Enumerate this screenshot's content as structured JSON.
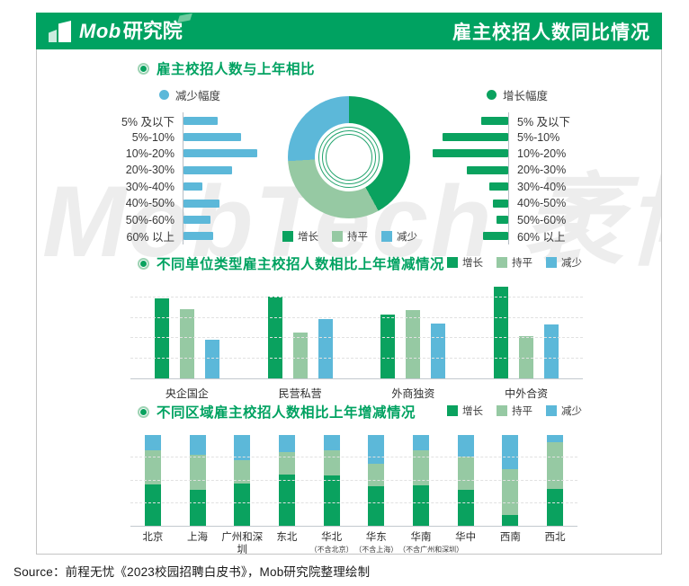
{
  "header": {
    "brand_en": "Mob",
    "brand_cn": "研究院",
    "title": "雇主校招人数同比情况"
  },
  "watermark": "MobTech 袤博",
  "footer": {
    "source": "Source：前程无忧《2023校园招聘白皮书》，Mob研究院整理绘制"
  },
  "colors": {
    "brand_green": "#00a261",
    "increase": "#0aa25f",
    "flat": "#96c9a3",
    "decrease": "#5cb8d9",
    "watermark": "#ededed"
  },
  "legend": {
    "increase": "增长",
    "flat": "持平",
    "decrease": "减少"
  },
  "sections": {
    "compare": {
      "title": "雇主校招人数与上年相比",
      "left_legend": "减少幅度",
      "right_legend": "增长幅度"
    },
    "unit": {
      "title": "不同单位类型雇主校招人数相比上年增减情况"
    },
    "region": {
      "title": "不同区域雇主校招人数相比上年增减情况"
    }
  },
  "chart_data": [
    {
      "type": "pie",
      "subtype": "donut",
      "title": "雇主校招人数与上年相比",
      "labels": [
        "增长",
        "持平",
        "减少"
      ],
      "values_percent": [
        42,
        32,
        26
      ],
      "colors": [
        "#0aa25f",
        "#96c9a3",
        "#5cb8d9"
      ],
      "start_angle_deg": 0,
      "legend_position": "bottom",
      "note": "no numeric labels printed; shares estimated from segment angles"
    },
    {
      "type": "bar",
      "orientation": "horizontal",
      "title": "减少幅度",
      "color": "#5cb8d9",
      "categories": [
        "5% 及以下",
        "5%-10%",
        "10%-20%",
        "20%-30%",
        "30%-40%",
        "40%-50%",
        "50%-60%",
        "60% 以上"
      ],
      "values_relative": [
        38,
        64,
        82,
        54,
        21,
        40,
        30,
        33
      ],
      "note": "no axis scale shown; values are relative bar lengths"
    },
    {
      "type": "bar",
      "orientation": "horizontal",
      "title": "增长幅度",
      "color": "#0aa25f",
      "categories": [
        "5% 及以下",
        "5%-10%",
        "10%-20%",
        "20%-30%",
        "30%-40%",
        "40%-50%",
        "50%-60%",
        "60% 以上"
      ],
      "values_relative": [
        30,
        73,
        84,
        46,
        21,
        17,
        13,
        28
      ],
      "note": "no axis scale shown; values are relative bar lengths"
    },
    {
      "type": "bar",
      "subtype": "grouped",
      "title": "不同单位类型雇主校招人数相比上年增减情况",
      "categories": [
        "央企国企",
        "民营私营",
        "外商独资",
        "中外合资"
      ],
      "series": [
        {
          "name": "增长",
          "color": "#0aa25f",
          "values_relative": [
            89,
            91,
            71,
            102
          ]
        },
        {
          "name": "持平",
          "color": "#96c9a3",
          "values_relative": [
            77,
            51,
            76,
            47
          ]
        },
        {
          "name": "减少",
          "color": "#5cb8d9",
          "values_relative": [
            43,
            66,
            61,
            60
          ]
        }
      ],
      "grid": "dashed horizontal",
      "legend_position": "top-right",
      "note": "no y-axis labels; values are relative bar heights"
    },
    {
      "type": "bar",
      "subtype": "stacked_percent",
      "title": "不同区域雇主校招人数相比上年增减情况",
      "categories": [
        {
          "label": "北京",
          "note": ""
        },
        {
          "label": "上海",
          "note": ""
        },
        {
          "label": "广州和深圳",
          "note": ""
        },
        {
          "label": "东北",
          "note": ""
        },
        {
          "label": "华北",
          "note": "（不含北京）"
        },
        {
          "label": "华东",
          "note": "（不含上海）"
        },
        {
          "label": "华南",
          "note": "（不含广州和深圳）"
        },
        {
          "label": "华中",
          "note": ""
        },
        {
          "label": "西南",
          "note": ""
        },
        {
          "label": "西北",
          "note": ""
        }
      ],
      "series": [
        {
          "name": "增长",
          "color": "#0aa25f",
          "values_percent": [
            46,
            40,
            47,
            56,
            55,
            44,
            45,
            40,
            12,
            41
          ]
        },
        {
          "name": "持平",
          "color": "#96c9a3",
          "values_percent": [
            37,
            38,
            25,
            25,
            28,
            24,
            38,
            36,
            50,
            51
          ]
        },
        {
          "name": "减少",
          "color": "#5cb8d9",
          "values_percent": [
            17,
            22,
            28,
            19,
            17,
            32,
            17,
            24,
            38,
            8
          ]
        }
      ],
      "grid": "dashed horizontal",
      "legend_position": "top-right",
      "note": "100% stacked; segment shares estimated from pixels"
    }
  ]
}
